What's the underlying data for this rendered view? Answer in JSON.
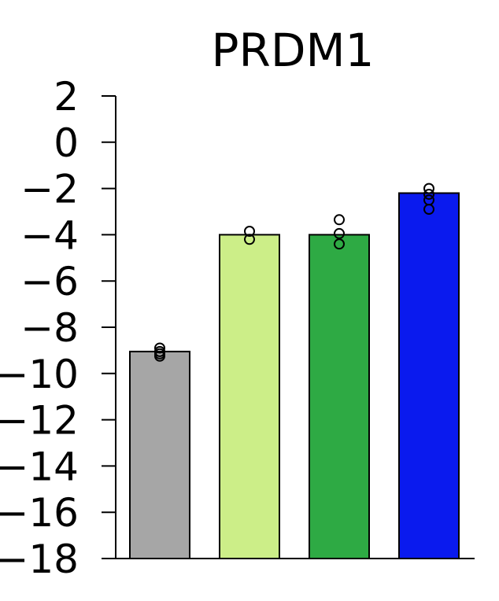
{
  "chart_data": {
    "type": "bar",
    "title": "PRDM1",
    "xlabel": "",
    "ylabel": "",
    "ylim": [
      -18,
      2
    ],
    "yticks": [
      2,
      0,
      -2,
      -4,
      -6,
      -8,
      -10,
      -12,
      -14,
      -16,
      -18
    ],
    "ytick_labels": [
      "2",
      "0",
      "−2",
      "−4",
      "−6",
      "−8",
      "−10",
      "−12",
      "−14",
      "−16",
      "−18"
    ],
    "grid": false,
    "legend": "none",
    "bars": [
      {
        "value": -9.05,
        "color": "#a6a6a6",
        "points": [
          -8.9,
          -9.05,
          -9.15,
          -9.25
        ]
      },
      {
        "value": -4.0,
        "color": "#ccee88",
        "points": [
          -3.85,
          -4.2
        ]
      },
      {
        "value": -4.0,
        "color": "#2eaa44",
        "points": [
          -3.35,
          -3.95,
          -4.4
        ]
      },
      {
        "value": -2.2,
        "color": "#0a1aee",
        "points": [
          -2.0,
          -2.25,
          -2.5,
          -2.9
        ]
      }
    ]
  }
}
